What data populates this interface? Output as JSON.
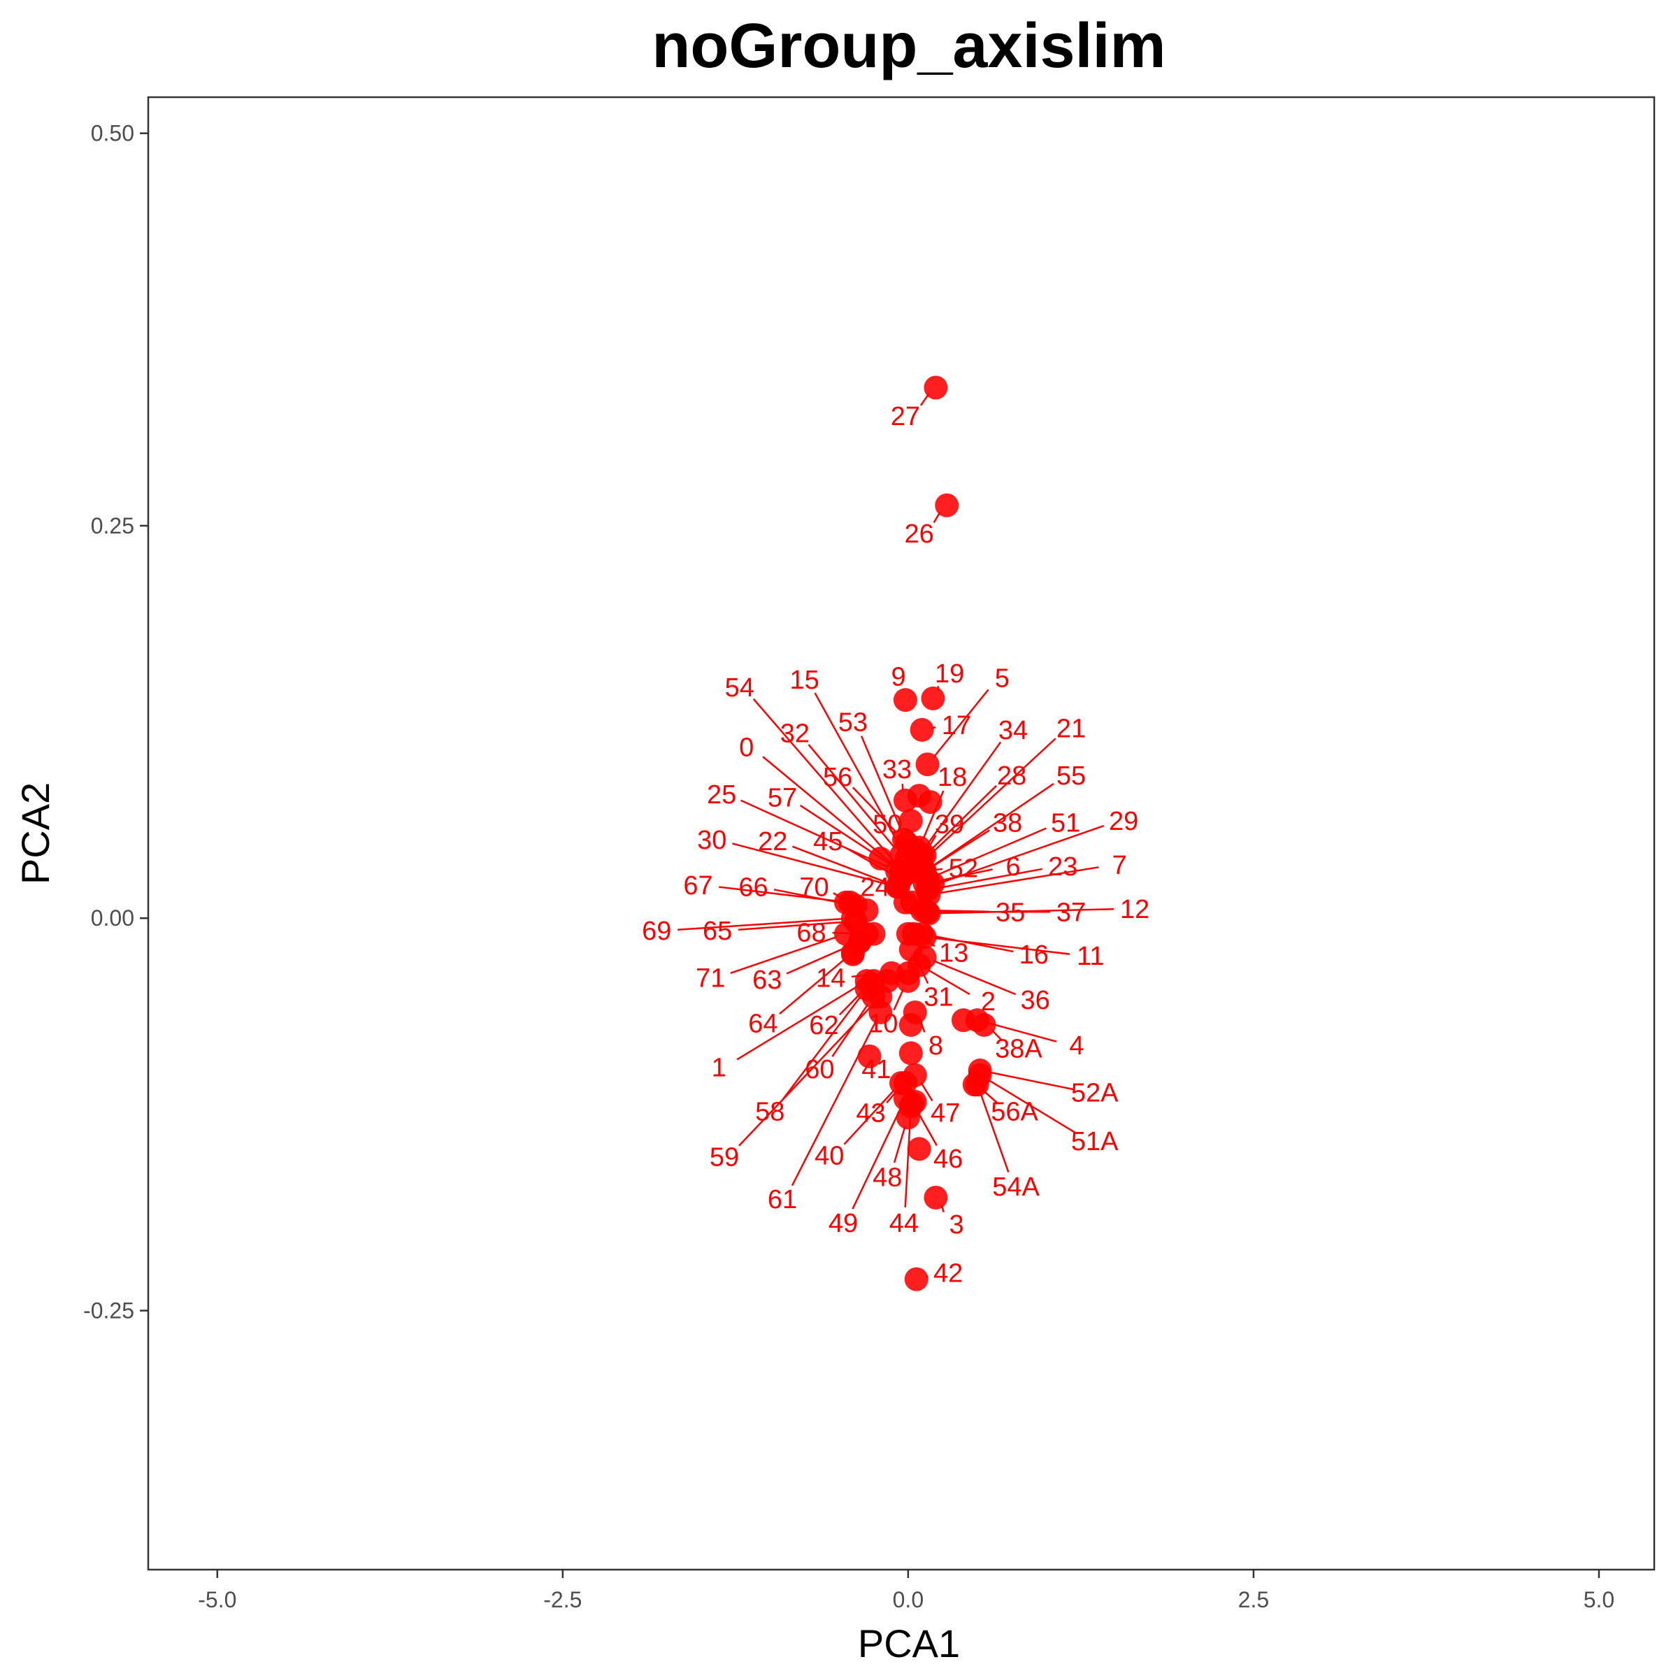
{
  "chart_data": {
    "type": "scatter",
    "title": "noGroup_axislim",
    "xlabel": "PCA1",
    "ylabel": "PCA2",
    "xlim": [
      -5.5,
      5.4
    ],
    "ylim": [
      -0.415,
      0.523
    ],
    "xticks": [
      -5.0,
      -2.5,
      0.0,
      2.5,
      5.0
    ],
    "xtick_labels": [
      "-5.0",
      "-2.5",
      "0.0",
      "2.5",
      "5.0"
    ],
    "yticks": [
      -0.25,
      0.0,
      0.25,
      0.5
    ],
    "ytick_labels": [
      "-0.25",
      "0.00",
      "0.25",
      "0.50"
    ],
    "grid": false,
    "legend": "none",
    "point_color": "#ff0000",
    "series": [
      {
        "points": [
          {
            "label": "27",
            "x": 0.2,
            "y": 0.338,
            "lx": -0.02,
            "ly": 0.32
          },
          {
            "label": "26",
            "x": 0.28,
            "y": 0.263,
            "lx": 0.08,
            "ly": 0.245
          },
          {
            "label": "9",
            "x": -0.02,
            "y": 0.139,
            "lx": -0.07,
            "ly": 0.154
          },
          {
            "label": "19",
            "x": 0.18,
            "y": 0.14,
            "lx": 0.3,
            "ly": 0.156
          },
          {
            "label": "5",
            "x": 0.14,
            "y": 0.098,
            "lx": 0.68,
            "ly": 0.153
          },
          {
            "label": "17",
            "x": 0.1,
            "y": 0.12,
            "lx": 0.35,
            "ly": 0.123
          },
          {
            "label": "54",
            "x": -0.02,
            "y": 0.028,
            "lx": -1.22,
            "ly": 0.147
          },
          {
            "label": "15",
            "x": -0.01,
            "y": 0.038,
            "lx": -0.75,
            "ly": 0.152
          },
          {
            "label": "53",
            "x": -0.01,
            "y": 0.048,
            "lx": -0.4,
            "ly": 0.125
          },
          {
            "label": "32",
            "x": -0.05,
            "y": 0.04,
            "lx": -0.82,
            "ly": 0.118
          },
          {
            "label": "34",
            "x": 0.08,
            "y": 0.04,
            "lx": 0.76,
            "ly": 0.12
          },
          {
            "label": "21",
            "x": 0.09,
            "y": 0.035,
            "lx": 1.18,
            "ly": 0.121
          },
          {
            "label": "0",
            "x": -0.05,
            "y": 0.03,
            "lx": -1.17,
            "ly": 0.109
          },
          {
            "label": "33",
            "x": -0.02,
            "y": 0.075,
            "lx": -0.08,
            "ly": 0.095
          },
          {
            "label": "56",
            "x": -0.03,
            "y": 0.05,
            "lx": -0.51,
            "ly": 0.09
          },
          {
            "label": "18",
            "x": 0.08,
            "y": 0.045,
            "lx": 0.32,
            "ly": 0.09
          },
          {
            "label": "28",
            "x": 0.12,
            "y": 0.04,
            "lx": 0.75,
            "ly": 0.091
          },
          {
            "label": "55",
            "x": 0.12,
            "y": 0.03,
            "lx": 1.18,
            "ly": 0.091
          },
          {
            "label": "25",
            "x": -0.08,
            "y": 0.03,
            "lx": -1.35,
            "ly": 0.079
          },
          {
            "label": "57",
            "x": -0.05,
            "y": 0.03,
            "lx": -0.91,
            "ly": 0.077
          },
          {
            "label": "50",
            "x": 0.02,
            "y": 0.062,
            "lx": -0.15,
            "ly": 0.06
          },
          {
            "label": "39",
            "x": 0.1,
            "y": 0.04,
            "lx": 0.3,
            "ly": 0.06
          },
          {
            "label": "38",
            "x": 0.12,
            "y": 0.03,
            "lx": 0.72,
            "ly": 0.061
          },
          {
            "label": "51",
            "x": 0.14,
            "y": 0.025,
            "lx": 1.14,
            "ly": 0.061
          },
          {
            "label": "29",
            "x": 0.15,
            "y": 0.02,
            "lx": 1.56,
            "ly": 0.062
          },
          {
            "label": "30",
            "x": -0.08,
            "y": 0.02,
            "lx": -1.42,
            "ly": 0.05
          },
          {
            "label": "22",
            "x": -0.07,
            "y": 0.02,
            "lx": -0.98,
            "ly": 0.049
          },
          {
            "label": "45",
            "x": -0.05,
            "y": 0.025,
            "lx": -0.58,
            "ly": 0.049
          },
          {
            "label": "52",
            "x": 0.08,
            "y": 0.03,
            "lx": 0.4,
            "ly": 0.032
          },
          {
            "label": "6",
            "x": 0.12,
            "y": 0.022,
            "lx": 0.76,
            "ly": 0.033
          },
          {
            "label": "23",
            "x": 0.14,
            "y": 0.018,
            "lx": 1.12,
            "ly": 0.033
          },
          {
            "label": "7",
            "x": 0.15,
            "y": 0.015,
            "lx": 1.53,
            "ly": 0.034
          },
          {
            "label": "67",
            "x": -0.42,
            "y": 0.01,
            "lx": -1.52,
            "ly": 0.021
          },
          {
            "label": "66",
            "x": -0.38,
            "y": 0.008,
            "lx": -1.12,
            "ly": 0.02
          },
          {
            "label": "70",
            "x": -0.3,
            "y": 0.005,
            "lx": -0.68,
            "ly": 0.02
          },
          {
            "label": "24",
            "x": -0.02,
            "y": 0.01,
            "lx": -0.24,
            "ly": 0.02
          },
          {
            "label": "35",
            "x": 0.12,
            "y": 0.005,
            "lx": 0.74,
            "ly": 0.004
          },
          {
            "label": "37",
            "x": 0.14,
            "y": 0.004,
            "lx": 1.18,
            "ly": 0.004
          },
          {
            "label": "12",
            "x": 0.15,
            "y": 0.003,
            "lx": 1.64,
            "ly": 0.006
          },
          {
            "label": "69",
            "x": -0.4,
            "y": 0.0,
            "lx": -1.82,
            "ly": -0.008
          },
          {
            "label": "65",
            "x": -0.38,
            "y": -0.002,
            "lx": -1.38,
            "ly": -0.008
          },
          {
            "label": "68",
            "x": -0.3,
            "y": -0.01,
            "lx": -0.7,
            "ly": -0.009
          },
          {
            "label": "13",
            "x": 0.04,
            "y": -0.01,
            "lx": 0.33,
            "ly": -0.022
          },
          {
            "label": "16",
            "x": 0.1,
            "y": -0.01,
            "lx": 0.91,
            "ly": -0.023
          },
          {
            "label": "11",
            "x": 0.12,
            "y": -0.012,
            "lx": 1.32,
            "ly": -0.024
          },
          {
            "label": "71",
            "x": -0.45,
            "y": -0.01,
            "lx": -1.43,
            "ly": -0.038
          },
          {
            "label": "63",
            "x": -0.35,
            "y": -0.015,
            "lx": -1.02,
            "ly": -0.039
          },
          {
            "label": "14",
            "x": -0.12,
            "y": -0.035,
            "lx": -0.56,
            "ly": -0.038
          },
          {
            "label": "31",
            "x": 0.02,
            "y": -0.02,
            "lx": 0.22,
            "ly": -0.05
          },
          {
            "label": "2",
            "x": 0.08,
            "y": -0.03,
            "lx": 0.58,
            "ly": -0.053
          },
          {
            "label": "36",
            "x": 0.12,
            "y": -0.025,
            "lx": 0.92,
            "ly": -0.052
          },
          {
            "label": "64",
            "x": -0.4,
            "y": -0.022,
            "lx": -1.05,
            "ly": -0.067
          },
          {
            "label": "62",
            "x": -0.25,
            "y": -0.04,
            "lx": -0.61,
            "ly": -0.068
          },
          {
            "label": "10",
            "x": 0.0,
            "y": -0.04,
            "lx": -0.18,
            "ly": -0.067
          },
          {
            "label": "8",
            "x": 0.05,
            "y": -0.06,
            "lx": 0.2,
            "ly": -0.081
          },
          {
            "label": "38A",
            "x": 0.55,
            "y": -0.068,
            "lx": 0.8,
            "ly": -0.083
          },
          {
            "label": "4",
            "x": 0.5,
            "y": -0.065,
            "lx": 1.22,
            "ly": -0.081
          },
          {
            "label": "1",
            "x": -0.3,
            "y": -0.04,
            "lx": -1.37,
            "ly": -0.095
          },
          {
            "label": "60",
            "x": -0.25,
            "y": -0.05,
            "lx": -0.64,
            "ly": -0.096
          },
          {
            "label": "41",
            "x": -0.28,
            "y": -0.088,
            "lx": -0.23,
            "ly": -0.096
          },
          {
            "label": "52A",
            "x": 0.52,
            "y": -0.097,
            "lx": 1.35,
            "ly": -0.111
          },
          {
            "label": "58",
            "x": -0.3,
            "y": -0.045,
            "lx": -1.0,
            "ly": -0.123
          },
          {
            "label": "43",
            "x": -0.02,
            "y": -0.105,
            "lx": -0.27,
            "ly": -0.124
          },
          {
            "label": "47",
            "x": 0.05,
            "y": -0.1,
            "lx": 0.27,
            "ly": -0.124
          },
          {
            "label": "56A",
            "x": 0.48,
            "y": -0.106,
            "lx": 0.77,
            "ly": -0.123
          },
          {
            "label": "51A",
            "x": 0.52,
            "y": -0.1,
            "lx": 1.35,
            "ly": -0.142
          },
          {
            "label": "59",
            "x": -0.2,
            "y": -0.05,
            "lx": -1.33,
            "ly": -0.152
          },
          {
            "label": "40",
            "x": -0.05,
            "y": -0.105,
            "lx": -0.57,
            "ly": -0.151
          },
          {
            "label": "46",
            "x": 0.03,
            "y": -0.118,
            "lx": 0.29,
            "ly": -0.153
          },
          {
            "label": "48",
            "x": 0.0,
            "y": -0.127,
            "lx": -0.15,
            "ly": -0.165
          },
          {
            "label": "54A",
            "x": 0.5,
            "y": -0.106,
            "lx": 0.78,
            "ly": -0.171
          },
          {
            "label": "61",
            "x": -0.2,
            "y": -0.06,
            "lx": -0.91,
            "ly": -0.179
          },
          {
            "label": "49",
            "x": -0.02,
            "y": -0.115,
            "lx": -0.47,
            "ly": -0.194
          },
          {
            "label": "44",
            "x": 0.02,
            "y": -0.12,
            "lx": -0.03,
            "ly": -0.194
          },
          {
            "label": "3",
            "x": 0.2,
            "y": -0.178,
            "lx": 0.35,
            "ly": -0.195
          },
          {
            "label": "42",
            "x": 0.06,
            "y": -0.23,
            "lx": 0.29,
            "ly": -0.226
          }
        ],
        "extra_points": [
          {
            "x": 0.08,
            "y": 0.078
          },
          {
            "x": 0.16,
            "y": 0.074
          },
          {
            "x": -0.2,
            "y": 0.038
          },
          {
            "x": 0.05,
            "y": 0.044
          },
          {
            "x": 0.18,
            "y": 0.022
          },
          {
            "x": -0.45,
            "y": 0.01
          },
          {
            "x": -0.35,
            "y": -0.015
          },
          {
            "x": -0.4,
            "y": -0.023
          },
          {
            "x": -0.25,
            "y": -0.01
          },
          {
            "x": 0.1,
            "y": 0.005
          },
          {
            "x": 0.0,
            "y": -0.035
          },
          {
            "x": 0.02,
            "y": -0.068
          },
          {
            "x": 0.02,
            "y": -0.086
          },
          {
            "x": 0.4,
            "y": -0.065
          },
          {
            "x": 0.05,
            "y": -0.117
          },
          {
            "x": 0.08,
            "y": -0.147
          },
          {
            "x": -0.15,
            "y": -0.04
          },
          {
            "x": 0.03,
            "y": 0.01
          },
          {
            "x": 0.0,
            "y": -0.01
          }
        ]
      }
    ]
  }
}
